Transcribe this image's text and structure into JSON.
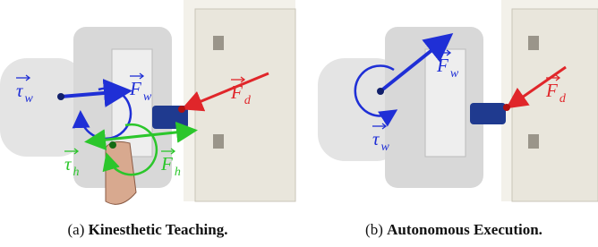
{
  "panels": [
    {
      "label": "(a)",
      "caption": "Kinesthetic Teaching.",
      "annotations": [
        {
          "symbol": "τ",
          "subscript": "w",
          "color": "#1f2fd6"
        },
        {
          "symbol": "F",
          "subscript": "w",
          "color": "#1f2fd6"
        },
        {
          "symbol": "F",
          "subscript": "d",
          "color": "#e0262a"
        },
        {
          "symbol": "τ",
          "subscript": "h",
          "color": "#2bc62b"
        },
        {
          "symbol": "F",
          "subscript": "h",
          "color": "#2bc62b"
        }
      ]
    },
    {
      "label": "(b)",
      "caption": "Autonomous Execution.",
      "annotations": [
        {
          "symbol": "F",
          "subscript": "w",
          "color": "#1f2fd6"
        },
        {
          "symbol": "F",
          "subscript": "d",
          "color": "#e0262a"
        },
        {
          "symbol": "τ",
          "subscript": "w",
          "color": "#1f2fd6"
        }
      ]
    }
  ]
}
